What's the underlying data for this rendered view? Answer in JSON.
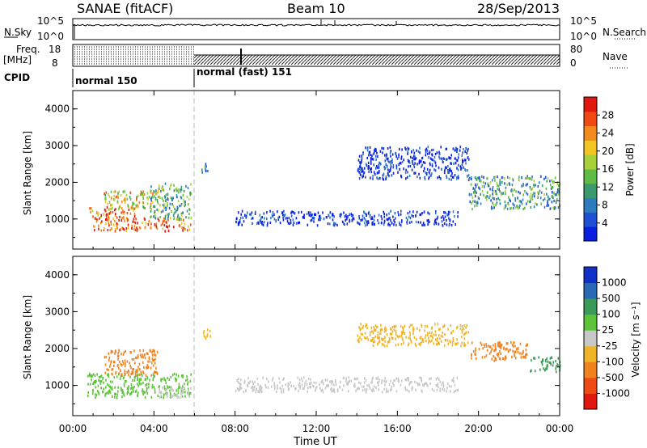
{
  "header": {
    "title": "SANAE (fitACF)",
    "beam": "Beam 10",
    "date": "28/Sep/2013"
  },
  "top_panels": {
    "nsky_label": "N.Sky",
    "nsky_ticks": [
      "10^5",
      "10^0"
    ],
    "nsearch_label": "N.Search",
    "nsearch_ticks": [
      "10^5",
      "10^0"
    ],
    "freq_label": "Freq.",
    "freq_unit": "[MHz]",
    "freq_ticks": [
      "18",
      "8"
    ],
    "nave_label": "Nave",
    "nave_ticks": [
      "80",
      "0"
    ],
    "cpid_label": "CPID",
    "cpid_modes": [
      "normal 150",
      "normal (fast) 151"
    ]
  },
  "time_axis": {
    "label": "Time UT",
    "ticks": [
      "00:00",
      "04:00",
      "08:00",
      "12:00",
      "16:00",
      "20:00",
      "00:00"
    ]
  },
  "chart_data": [
    {
      "type": "heatmap",
      "panel": "power",
      "ylabel": "Slant Range [km]",
      "xlim_hours": [
        0,
        24
      ],
      "ylim_km": [
        180,
        4500
      ],
      "yticks": [
        1000,
        2000,
        3000,
        4000
      ],
      "colorbar": {
        "label": "Power [dB]",
        "ticks": [
          "4",
          "8",
          "12",
          "16",
          "20",
          "24",
          "28"
        ],
        "colors": [
          "#0a1ee0",
          "#1f4fd2",
          "#2d7dbe",
          "#3a9a6e",
          "#5fbb46",
          "#a6d13a",
          "#f2c424",
          "#f28a1e",
          "#f04a14",
          "#e01810"
        ]
      },
      "regions": [
        {
          "t0": 0.7,
          "t1": 3.1,
          "r0": 1050,
          "r1": 1350,
          "level": 0.75
        },
        {
          "t0": 1.0,
          "t1": 5.8,
          "r0": 700,
          "r1": 1050,
          "level": 0.85
        },
        {
          "t0": 1.5,
          "t1": 4.2,
          "r0": 1300,
          "r1": 1800,
          "level": 0.6
        },
        {
          "t0": 3.8,
          "t1": 5.8,
          "r0": 1000,
          "r1": 2000,
          "level": 0.4
        },
        {
          "t0": 6.3,
          "t1": 6.8,
          "r0": 2300,
          "r1": 2550,
          "level": 0.3
        },
        {
          "t0": 8.0,
          "t1": 19.0,
          "r0": 850,
          "r1": 1250,
          "level": 0.05
        },
        {
          "t0": 14.0,
          "t1": 19.5,
          "r0": 2100,
          "r1": 3000,
          "level": 0.05
        },
        {
          "t0": 19.5,
          "t1": 24.0,
          "r0": 1300,
          "r1": 2200,
          "level": 0.35
        }
      ]
    },
    {
      "type": "heatmap",
      "panel": "velocity",
      "ylabel": "Slant Range [km]",
      "xlim_hours": [
        0,
        24
      ],
      "ylim_km": [
        180,
        4500
      ],
      "yticks": [
        1000,
        2000,
        3000,
        4000
      ],
      "colorbar": {
        "label": "Velocity [m s⁻¹]",
        "ticks": [
          "1000",
          "500",
          "100",
          "25",
          "-25",
          "-100",
          "-500",
          "-1000"
        ],
        "colors": [
          "#1030c8",
          "#2a6ab4",
          "#3a9a58",
          "#5cc23a",
          "#c8c8c8",
          "#f0b428",
          "#f08220",
          "#f04a14",
          "#e01810"
        ]
      },
      "regions": [
        {
          "t0": 0.7,
          "t1": 5.8,
          "r0": 700,
          "r1": 1350,
          "color": "#5cc23a"
        },
        {
          "t0": 4.2,
          "t1": 5.8,
          "r0": 700,
          "r1": 1000,
          "color": "#c8c8c8"
        },
        {
          "t0": 1.5,
          "t1": 4.2,
          "r0": 1300,
          "r1": 2000,
          "color": "#f08220"
        },
        {
          "t0": 6.3,
          "t1": 6.8,
          "r0": 2300,
          "r1": 2550,
          "color": "#f0b428"
        },
        {
          "t0": 8.0,
          "t1": 19.0,
          "r0": 850,
          "r1": 1250,
          "color": "#c8c8c8"
        },
        {
          "t0": 14.0,
          "t1": 19.5,
          "r0": 2100,
          "r1": 2700,
          "color": "#f0b428"
        },
        {
          "t0": 19.5,
          "t1": 22.5,
          "r0": 1700,
          "r1": 2200,
          "color": "#f08220"
        },
        {
          "t0": 22.5,
          "t1": 24.0,
          "r0": 1400,
          "r1": 1800,
          "color": "#3a9a58"
        }
      ]
    }
  ]
}
